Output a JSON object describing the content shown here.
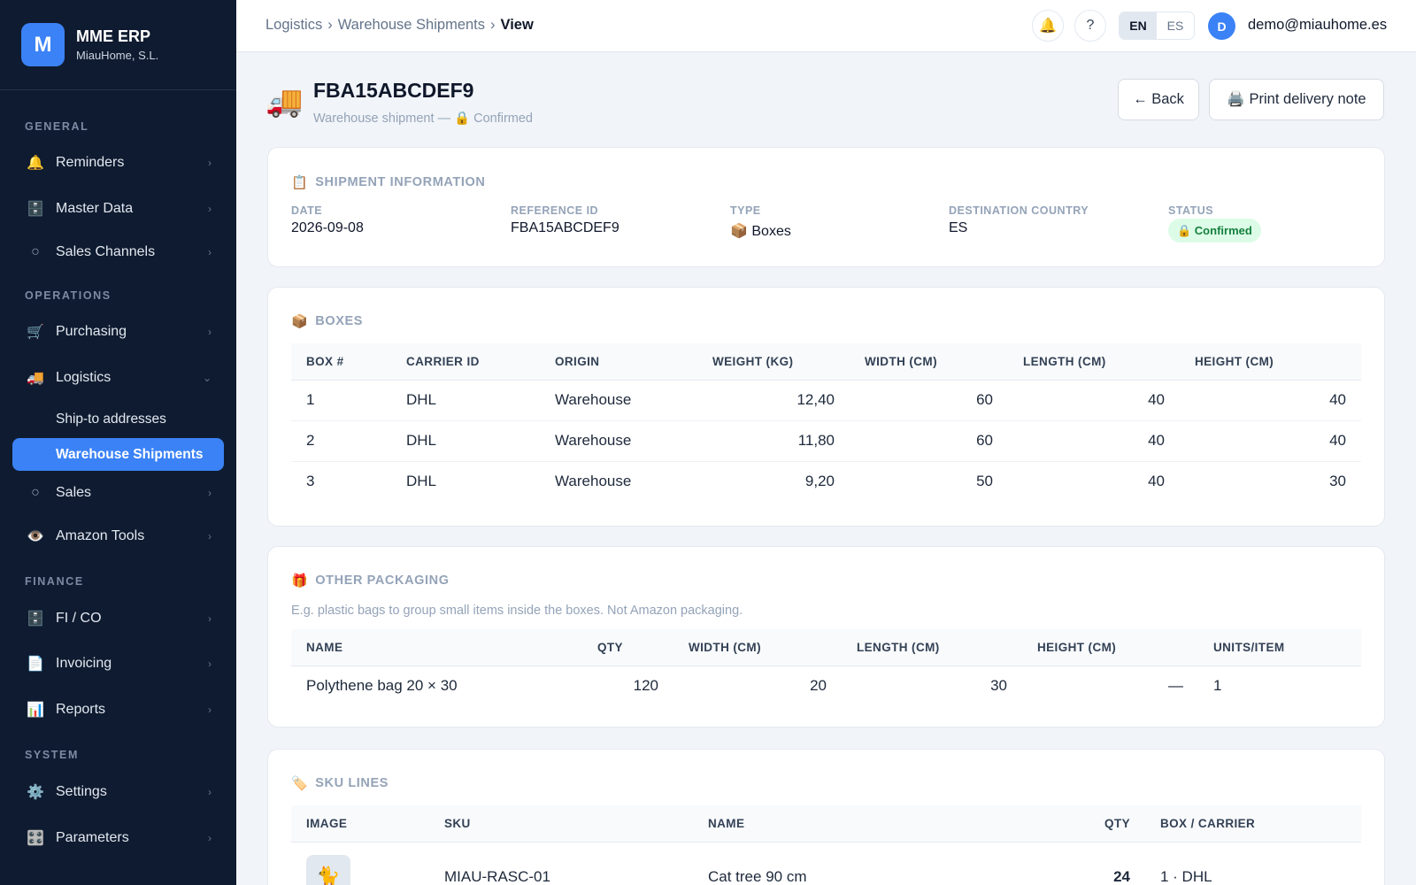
{
  "brand": {
    "logo_letter": "M",
    "name": "MME ERP",
    "company": "MiauHome, S.L."
  },
  "sidebar": {
    "sections": [
      "GENERAL",
      "OPERATIONS",
      "FINANCE",
      "SYSTEM"
    ],
    "items": [
      {
        "label": "Reminders",
        "icon": "bell-icon",
        "glyph": "🔔"
      },
      {
        "label": "Master Data",
        "icon": "cabinet-icon",
        "glyph": "🗄️"
      },
      {
        "label": "Sales Channels",
        "icon": "circle-icon",
        "glyph": "○"
      },
      {
        "label": "Purchasing",
        "icon": "cart-icon",
        "glyph": "🛒"
      },
      {
        "label": "Logistics",
        "icon": "truck-icon",
        "glyph": "🚚"
      },
      {
        "label": "Sales",
        "icon": "circle-icon",
        "glyph": "○"
      },
      {
        "label": "Amazon Tools",
        "icon": "eye-icon",
        "glyph": "👁️"
      },
      {
        "label": "FI / CO",
        "icon": "cabinet-icon",
        "glyph": "🗄️"
      },
      {
        "label": "Invoicing",
        "icon": "document-icon",
        "glyph": "📄"
      },
      {
        "label": "Reports",
        "icon": "chart-icon",
        "glyph": "📊"
      },
      {
        "label": "Settings",
        "icon": "gear-icon",
        "glyph": "⚙️"
      },
      {
        "label": "Parameters",
        "icon": "sliders-icon",
        "glyph": "🎛️"
      }
    ],
    "logistics_sub": [
      "Ship-to addresses",
      "Warehouse Shipments"
    ],
    "chevron_right": "›",
    "chevron_down": "⌄"
  },
  "topbar": {
    "breadcrumb": [
      "Logistics",
      "Warehouse Shipments",
      "View"
    ],
    "breadcrumb_sep": "›",
    "bell_glyph": "🔔",
    "help_glyph": "?",
    "lang_active": "EN",
    "lang_other": "ES",
    "avatar_letter": "D",
    "user_email": "demo@miauhome.es"
  },
  "header": {
    "icon_glyph": "🚚",
    "title": "FBA15ABCDEF9",
    "subtitle": "Warehouse shipment — 🔒 Confirmed",
    "back_label": "← Back",
    "print_label": "🖨️ Print delivery note"
  },
  "shipment_info": {
    "title": "SHIPMENT INFORMATION",
    "title_glyph": "📋",
    "fields": [
      {
        "label": "DATE",
        "value": "2026-09-08"
      },
      {
        "label": "REFERENCE ID",
        "value": "FBA15ABCDEF9"
      },
      {
        "label": "TYPE",
        "value": "📦 Boxes"
      },
      {
        "label": "DESTINATION COUNTRY",
        "value": "ES"
      },
      {
        "label": "STATUS",
        "value": "🔒 Confirmed"
      }
    ],
    "status_color": "#15803d"
  },
  "boxes": {
    "title": "BOXES",
    "title_glyph": "📦",
    "columns": [
      "BOX #",
      "CARRIER ID",
      "ORIGIN",
      "WEIGHT (KG)",
      "WIDTH (CM)",
      "LENGTH (CM)",
      "HEIGHT (CM)"
    ],
    "rows": [
      [
        "1",
        "DHL",
        "Warehouse",
        "12,40",
        "60",
        "40",
        "40"
      ],
      [
        "2",
        "DHL",
        "Warehouse",
        "11,80",
        "60",
        "40",
        "40"
      ],
      [
        "3",
        "DHL",
        "Warehouse",
        "9,20",
        "50",
        "40",
        "30"
      ]
    ]
  },
  "other_packaging": {
    "title": "OTHER PACKAGING",
    "title_glyph": "🎁",
    "hint": "E.g. plastic bags to group small items inside the boxes. Not Amazon packaging.",
    "columns": [
      "NAME",
      "QTY",
      "WIDTH (CM)",
      "LENGTH (CM)",
      "HEIGHT (CM)",
      "UNITS/ITEM"
    ],
    "rows": [
      [
        "Polythene bag 20 × 30",
        "120",
        "20",
        "30",
        "—",
        "1"
      ]
    ]
  },
  "sku_lines": {
    "title": "SKU LINES",
    "title_glyph": "🏷️",
    "columns": [
      "IMAGE",
      "SKU",
      "NAME",
      "QTY",
      "BOX / CARRIER"
    ],
    "rows": [
      {
        "image_glyph": "🐈",
        "sku": "MIAU-RASC-01",
        "name": "Cat tree 90 cm",
        "qty": "24",
        "box": "1 · DHL"
      }
    ]
  },
  "colors": {
    "accent": "#3b82f6",
    "sidebar_bg": "#0f1b30"
  }
}
